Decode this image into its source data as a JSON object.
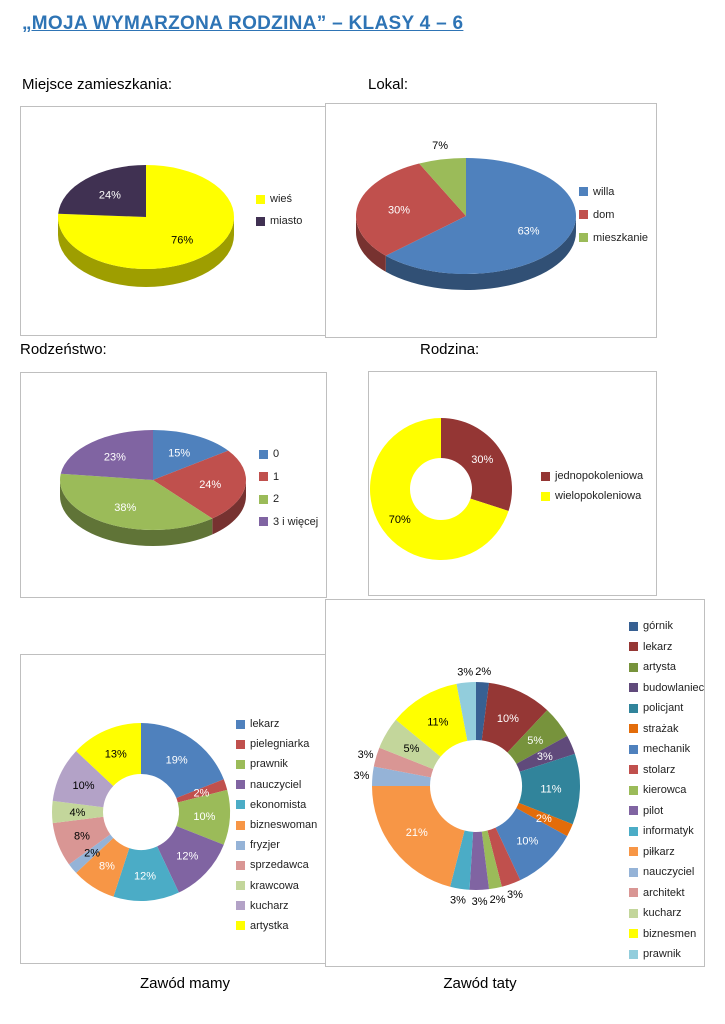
{
  "page": {
    "title": "„MOJA WYMARZONA RODZINA” – KLASY 4 – 6",
    "title_color": "#2E74B5",
    "background": "#FFFFFF"
  },
  "sections": {
    "miejsce": "Miejsce zamieszkania:",
    "lokal": "Lokal:",
    "rodzenstwo": "Rodzeństwo:",
    "rodzina": "Rodzina:"
  },
  "captions": {
    "mamy": "Zawód mamy",
    "taty": "Zawód taty"
  },
  "chart_data": [
    {
      "id": "miejsce",
      "type": "pie",
      "subtype": "pie3d",
      "title": "Miejsce zamieszkania",
      "categories": [
        "wieś",
        "miasto"
      ],
      "values": [
        76,
        24
      ],
      "unit": "%",
      "colors": [
        "#FFFF00",
        "#403152"
      ],
      "legend_position": "right",
      "data_labels": "percent",
      "outside_labels": []
    },
    {
      "id": "lokal",
      "type": "pie",
      "subtype": "pie3d",
      "title": "Lokal",
      "categories": [
        "willa",
        "dom",
        "mieszkanie"
      ],
      "values": [
        63,
        30,
        7
      ],
      "unit": "%",
      "colors": [
        "#4F81BD",
        "#C0504D",
        "#9BBB59"
      ],
      "legend_position": "right",
      "data_labels": "percent",
      "outside_labels": [
        2
      ]
    },
    {
      "id": "rodzenstwo",
      "type": "pie",
      "subtype": "pie3d",
      "title": "Rodzeństwo",
      "categories": [
        "0",
        "1",
        "2",
        "3 i więcej"
      ],
      "values": [
        15,
        24,
        38,
        23
      ],
      "unit": "%",
      "colors": [
        "#4F81BD",
        "#C0504D",
        "#9BBB59",
        "#8064A2"
      ],
      "legend_position": "right",
      "data_labels": "percent",
      "outside_labels": []
    },
    {
      "id": "rodzina",
      "type": "pie",
      "subtype": "doughnut",
      "title": "Rodzina",
      "categories": [
        "jednopokoleniowa",
        "wielopokoleniowa"
      ],
      "values": [
        30,
        70
      ],
      "unit": "%",
      "colors": [
        "#943634",
        "#FFFF00"
      ],
      "legend_position": "right",
      "data_labels": "percent",
      "outside_labels": []
    },
    {
      "id": "zawod-mamy",
      "type": "pie",
      "subtype": "doughnut",
      "title": "Zawód mamy",
      "categories": [
        "lekarz",
        "pielegniarka",
        "prawnik",
        "nauczyciel",
        "ekonomista",
        "bizneswoman",
        "fryzjer",
        "sprzedawca",
        "krawcowa",
        "kucharz",
        "artystka"
      ],
      "values": [
        19,
        2,
        10,
        12,
        12,
        8,
        2,
        8,
        4,
        10,
        13
      ],
      "unit": "%",
      "colors": [
        "#4F81BD",
        "#C0504D",
        "#9BBB59",
        "#8064A2",
        "#4BACC6",
        "#F79646",
        "#95B3D7",
        "#D99694",
        "#C3D69B",
        "#B3A2C7",
        "#FFFF00"
      ],
      "legend_position": "right",
      "data_labels": "percent",
      "outside_labels": []
    },
    {
      "id": "zawod-taty",
      "type": "pie",
      "subtype": "doughnut",
      "title": "Zawód taty",
      "categories": [
        "górnik",
        "lekarz",
        "artysta",
        "budowlaniec",
        "policjant",
        "strażak",
        "mechanik",
        "stolarz",
        "kierowca",
        "pilot",
        "informatyk",
        "piłkarz",
        "nauczyciel",
        "architekt",
        "kucharz",
        "biznesmen",
        "prawnik"
      ],
      "values": [
        2,
        10,
        5,
        3,
        11,
        2,
        10,
        3,
        2,
        3,
        3,
        21,
        3,
        3,
        5,
        11,
        3
      ],
      "unit": "%",
      "colors": [
        "#376092",
        "#953735",
        "#77933C",
        "#604A7B",
        "#31849B",
        "#E36C0A",
        "#4F81BD",
        "#C0504D",
        "#9BBB59",
        "#8064A2",
        "#4BACC6",
        "#F79646",
        "#95B3D7",
        "#D99694",
        "#C3D69B",
        "#FFFF00",
        "#92CDDC"
      ],
      "legend_position": "right",
      "data_labels": "percent",
      "outside_labels": [
        0,
        7,
        8,
        9,
        10,
        12,
        13,
        16
      ]
    }
  ]
}
